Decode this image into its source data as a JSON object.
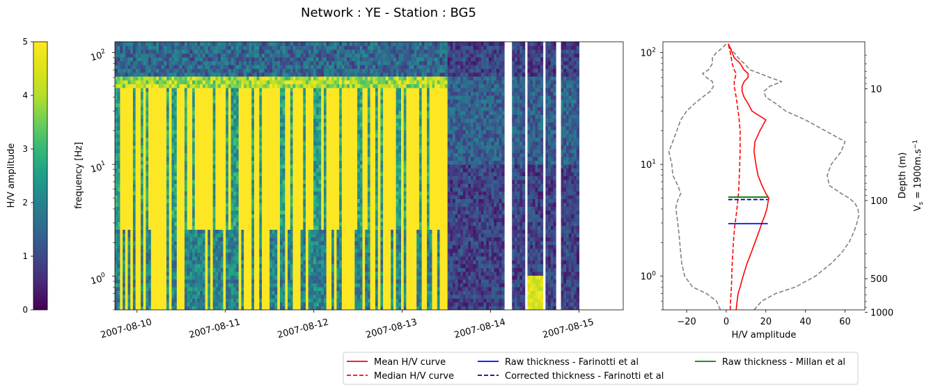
{
  "title": "Network : YE - Station : BG5",
  "colorbar": {
    "label": "H/V amplitude",
    "ticks": [
      "0",
      "1",
      "2",
      "3",
      "4",
      "5"
    ],
    "range": [
      0,
      5
    ],
    "colormap": "viridis"
  },
  "chart_data": [
    {
      "type": "heatmap",
      "name": "spectrogram",
      "ylabel": "frequency [Hz]",
      "xlabel": "",
      "yscale": "log",
      "ylim": [
        0.5,
        125
      ],
      "xlim": [
        "2007-08-09 18:00",
        "2007-08-15 12:00"
      ],
      "x_ticks": [
        "2007-08-10",
        "2007-08-11",
        "2007-08-12",
        "2007-08-13",
        "2007-08-14",
        "2007-08-15"
      ],
      "y_ticks": [
        "10^0",
        "10^1",
        "10^2"
      ],
      "gaps": [
        [
          "2007-08-14 04:00",
          "2007-08-14 06:00"
        ],
        [
          "2007-08-14 09:00",
          "2007-08-14 10:00"
        ],
        [
          "2007-08-14 14:00",
          "2007-08-14 15:00"
        ],
        [
          "2007-08-14 18:00",
          "2007-08-14 19:00"
        ],
        [
          "2007-08-15 00:00",
          "2007-08-15 12:00"
        ]
      ],
      "description_values": {
        "saturated_yellow_until": "2007-08-13 12:00",
        "low_band_top_hz": 2.7,
        "upper_band_top_hz": 55
      }
    },
    {
      "type": "line",
      "name": "hv_profile",
      "xlabel": "H/V amplitude",
      "ylabel": "",
      "yscale": "log",
      "xlim": [
        -32,
        70
      ],
      "ylim": [
        0.5,
        125
      ],
      "x_ticks": [
        "−20",
        "0",
        "20",
        "40",
        "60"
      ],
      "y_ticks": [
        "10^0",
        "10^1",
        "10^2"
      ],
      "depth_axis": {
        "label": "Depth (m)",
        "label2": "V",
        "label2_sub": "s",
        "label2_rest": " = 1900m.s",
        "label2_sup": "−1",
        "ticks": [
          "10",
          "100",
          "500",
          "1000"
        ]
      },
      "freq": [
        0.5,
        0.6,
        0.7,
        0.8,
        1.0,
        1.3,
        1.6,
        2.0,
        2.5,
        3.0,
        3.5,
        4.0,
        4.5,
        5.0,
        5.5,
        6.5,
        8.0,
        10.0,
        13.0,
        16.0,
        20.0,
        25.0,
        30.0,
        35.0,
        40.0,
        45.0,
        50.0,
        55.0,
        60.0,
        65.0,
        70.0,
        80.0,
        90.0,
        100.0,
        110.0,
        120.0
      ],
      "series": [
        {
          "name": "Mean H/V curve",
          "color": "#ff0000",
          "style": "solid",
          "values": [
            5,
            5.5,
            6,
            7,
            8.5,
            10.5,
            12.5,
            14.5,
            16.5,
            18,
            19.5,
            20.5,
            21,
            21.5,
            20,
            18,
            16,
            15,
            14,
            14.5,
            17,
            20,
            13,
            11,
            9,
            8,
            8,
            9,
            11,
            11,
            9,
            7,
            4,
            3,
            2,
            1
          ]
        },
        {
          "name": "Median H/V curve",
          "color": "#ff0000",
          "style": "dashed",
          "values": [
            2,
            2.2,
            2.4,
            2.6,
            2.8,
            3,
            3.3,
            3.6,
            4,
            4.5,
            5,
            5.4,
            5.7,
            6,
            6.2,
            6.4,
            6.6,
            6.8,
            7,
            7,
            7,
            6.5,
            6,
            5.5,
            5,
            4.5,
            4,
            4,
            4.5,
            5,
            4,
            3,
            2.5,
            2,
            1.5,
            1
          ]
        },
        {
          "name": "percentile_low",
          "color": "#808080",
          "style": "dashed",
          "values": [
            -3,
            -5,
            -10,
            -17,
            -21,
            -22.5,
            -23,
            -23.5,
            -24,
            -24.5,
            -25,
            -25.5,
            -25,
            -24,
            -23,
            -24.5,
            -27,
            -27.5,
            -29,
            -27,
            -25,
            -23,
            -20,
            -16,
            -12,
            -8,
            -6.5,
            -7,
            -10,
            -12,
            -9,
            -7,
            -7,
            -5,
            -2,
            0
          ]
        },
        {
          "name": "percentile_high",
          "color": "#808080",
          "style": "dashed",
          "values": [
            14,
            18,
            25,
            35,
            45,
            53,
            58,
            62,
            64.5,
            66,
            67,
            66.5,
            65,
            62,
            58,
            52,
            51,
            53,
            58,
            60,
            50,
            40,
            30,
            25,
            20,
            19,
            22,
            28,
            22,
            17,
            12,
            9,
            6,
            4,
            2,
            1
          ]
        }
      ],
      "hlines": [
        {
          "name": "Raw thickness - Farinotti et al",
          "color": "#0000ff",
          "style": "solid",
          "freq": 2.95,
          "x": [
            1,
            21
          ]
        },
        {
          "name": "Corrected thickness - Farinotti et al",
          "color": "#00008b",
          "style": "dashed",
          "freq": 4.85,
          "x": [
            1,
            21
          ]
        },
        {
          "name": "Raw thickness - Millan et al",
          "color": "#008000",
          "style": "solid",
          "freq": 5.1,
          "x": [
            1,
            21
          ]
        }
      ]
    }
  ],
  "legend": {
    "placement": "bottom-right",
    "items": [
      {
        "label": "Mean H/V curve",
        "color": "#ff0000",
        "dash": "solid"
      },
      {
        "label": "Median H/V curve",
        "color": "#ff0000",
        "dash": "dashed"
      },
      {
        "label": "Raw thickness - Farinotti et al",
        "color": "#0000ff",
        "dash": "solid"
      },
      {
        "label": "Corrected thickness - Farinotti et al",
        "color": "#00008b",
        "dash": "dashed"
      },
      {
        "label": "Raw thickness - Millan et al",
        "color": "#008000",
        "dash": "solid"
      }
    ]
  }
}
